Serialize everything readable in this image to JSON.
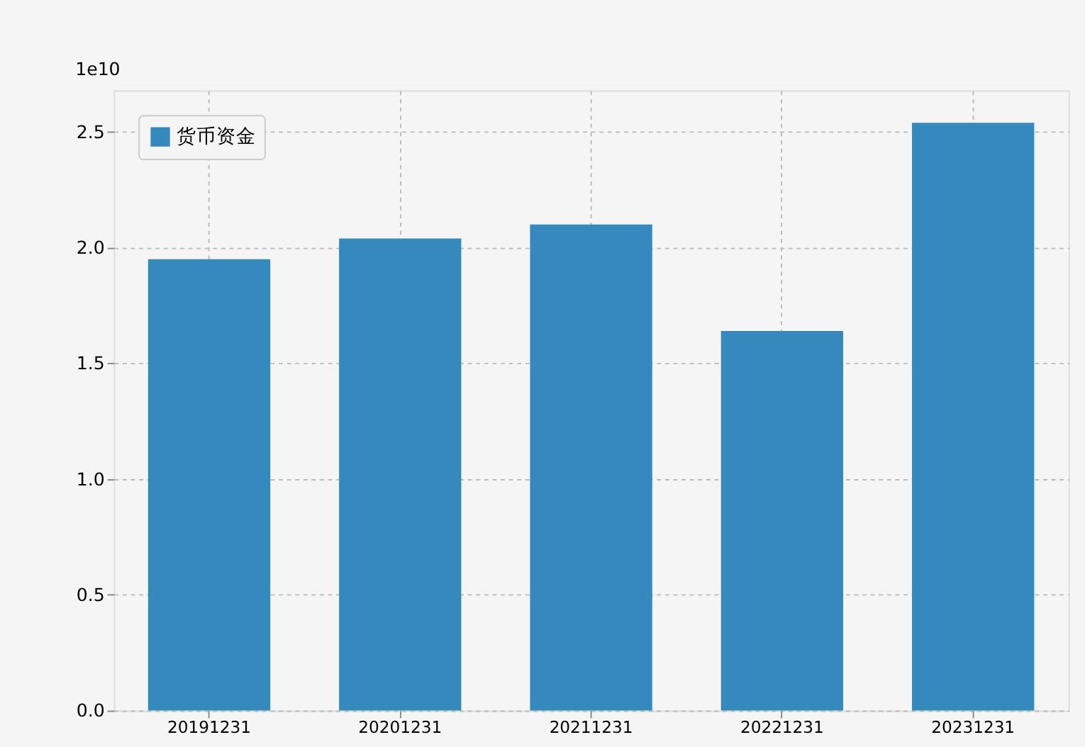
{
  "chart_data": {
    "type": "bar",
    "categories": [
      "20191231",
      "20201231",
      "20211231",
      "20221231",
      "20231231"
    ],
    "series": [
      {
        "name": "货币资金",
        "color": "#348abd",
        "values": [
          1.95,
          2.04,
          2.1,
          1.64,
          2.54
        ]
      }
    ],
    "ylim": [
      0,
      2.68
    ],
    "yticks": [
      {
        "value": 0,
        "label": "0.0"
      },
      0.5,
      {
        "value": 1,
        "label": "1.0"
      },
      1.5,
      {
        "value": 2,
        "label": "2.0"
      },
      2.5
    ],
    "annotations": [
      "1e10"
    ],
    "grid": true,
    "legend": "top left"
  }
}
